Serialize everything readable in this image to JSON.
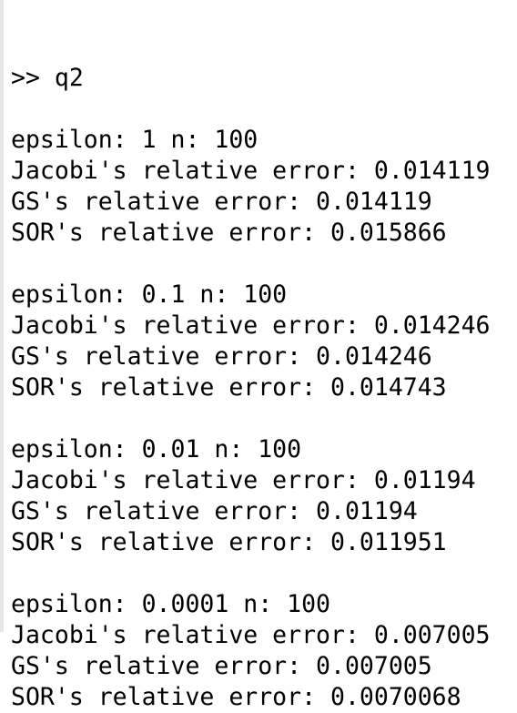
{
  "prompt": ">> q2",
  "blocks": [
    {
      "lines": [
        "epsilon: 1 n: 100",
        "Jacobi's relative error: 0.014119",
        "GS's relative error: 0.014119",
        "SOR's relative error: 0.015866"
      ]
    },
    {
      "lines": [
        "epsilon: 0.1 n: 100",
        "Jacobi's relative error: 0.014246",
        "GS's relative error: 0.014246",
        "SOR's relative error: 0.014743"
      ]
    },
    {
      "lines": [
        "epsilon: 0.01 n: 100",
        "Jacobi's relative error: 0.01194",
        "GS's relative error: 0.01194",
        "SOR's relative error: 0.011951"
      ]
    },
    {
      "lines": [
        "epsilon: 0.0001 n: 100",
        "Jacobi's relative error: 0.007005",
        "GS's relative error: 0.007005",
        "SOR's relative error: 0.0070068"
      ]
    }
  ]
}
